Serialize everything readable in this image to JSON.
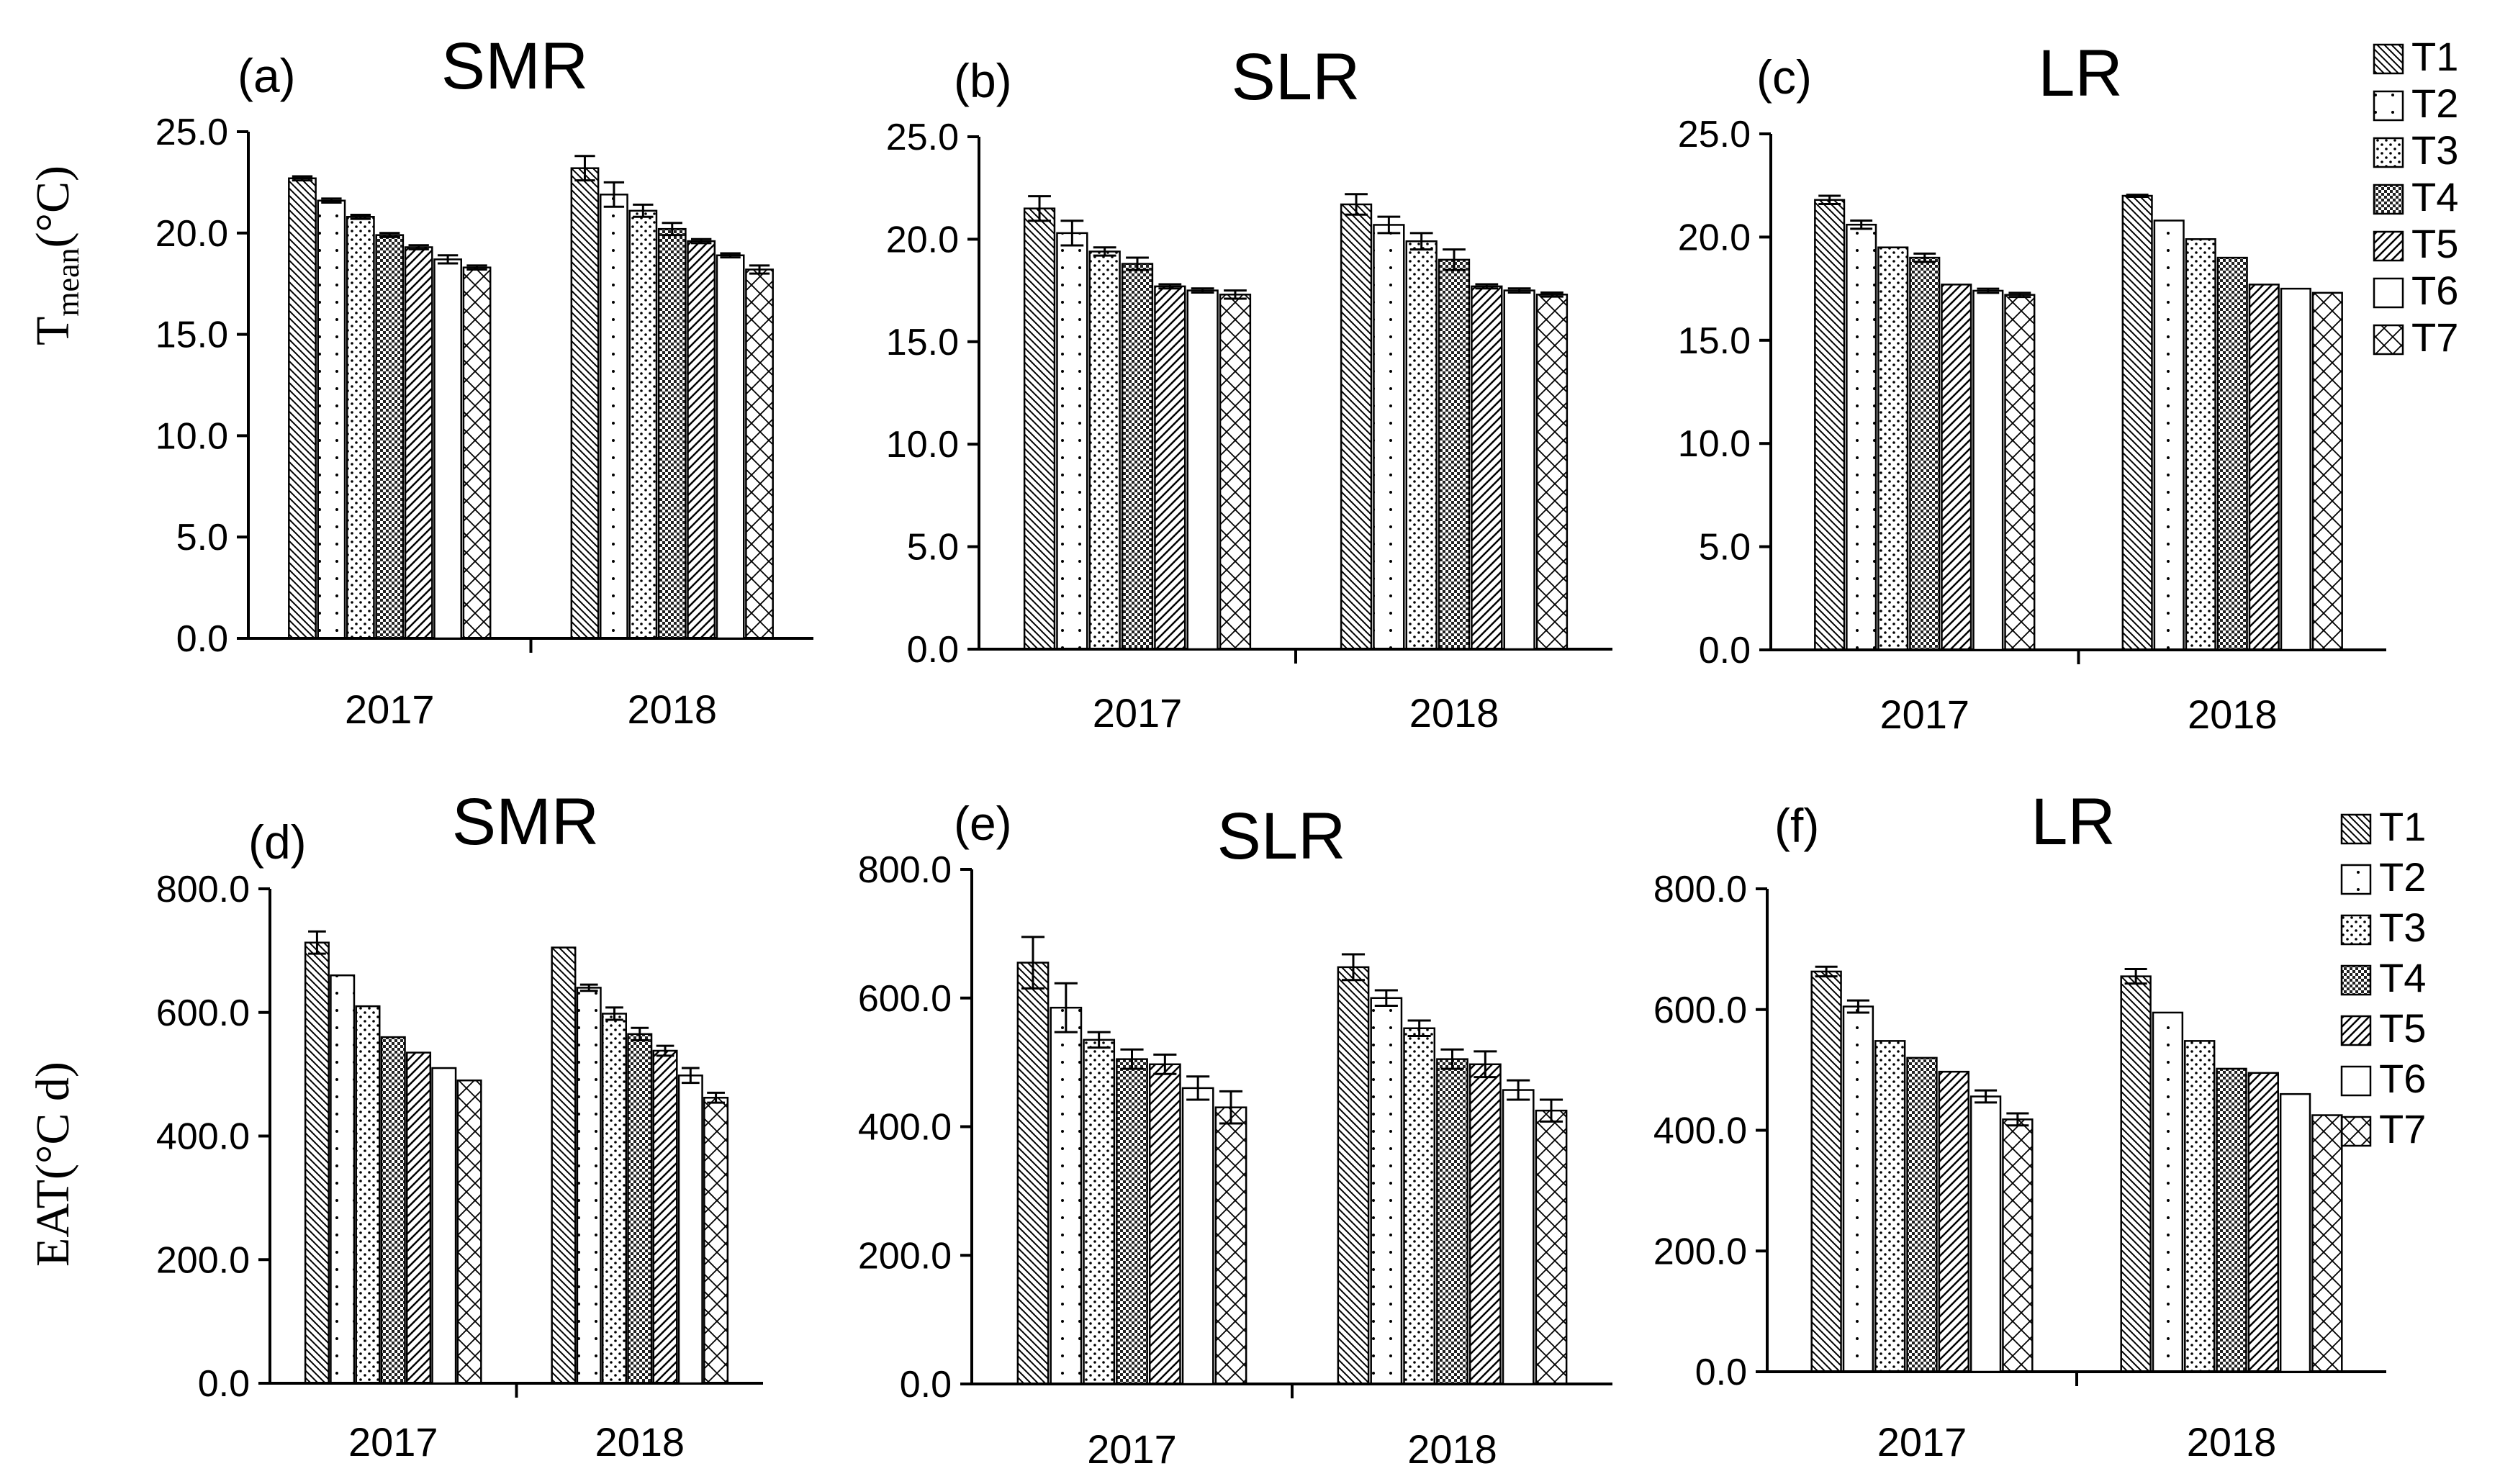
{
  "figure": {
    "y_title_top": "T",
    "y_title_top_sub": "mean",
    "y_title_top_unit": "(°C)",
    "y_title_bottom": "EAT(°C d)"
  },
  "legend": {
    "entries": [
      "T1",
      "T2",
      "T3",
      "T4",
      "T5",
      "T6",
      "T7"
    ]
  },
  "chart_data": [
    {
      "type": "bar",
      "panel": "(a)",
      "title": "SMR",
      "categories": [
        "2017",
        "2018"
      ],
      "ylim": [
        0,
        25
      ],
      "yticks": [
        "0.0",
        "5.0",
        "10.0",
        "15.0",
        "20.0",
        "25.0"
      ],
      "series": [
        {
          "name": "T1",
          "values": [
            22.7,
            23.2
          ],
          "errors": [
            0.1,
            0.6
          ]
        },
        {
          "name": "T2",
          "values": [
            21.6,
            21.9
          ],
          "errors": [
            0.1,
            0.6
          ]
        },
        {
          "name": "T3",
          "values": [
            20.8,
            21.1
          ],
          "errors": [
            0.1,
            0.3
          ]
        },
        {
          "name": "T4",
          "values": [
            19.9,
            20.2
          ],
          "errors": [
            0.1,
            0.3
          ]
        },
        {
          "name": "T5",
          "values": [
            19.3,
            19.6
          ],
          "errors": [
            0.1,
            0.1
          ]
        },
        {
          "name": "T6",
          "values": [
            18.7,
            18.9
          ],
          "errors": [
            0.2,
            0.1
          ]
        },
        {
          "name": "T7",
          "values": [
            18.3,
            18.2
          ],
          "errors": [
            0.1,
            0.2
          ]
        }
      ]
    },
    {
      "type": "bar",
      "panel": "(b)",
      "title": "SLR",
      "categories": [
        "2017",
        "2018"
      ],
      "ylim": [
        0,
        25
      ],
      "yticks": [
        "0.0",
        "5.0",
        "10.0",
        "15.0",
        "20.0",
        "25.0"
      ],
      "series": [
        {
          "name": "T1",
          "values": [
            21.5,
            21.7
          ],
          "errors": [
            0.6,
            0.5
          ]
        },
        {
          "name": "T2",
          "values": [
            20.3,
            20.7
          ],
          "errors": [
            0.6,
            0.4
          ]
        },
        {
          "name": "T3",
          "values": [
            19.4,
            19.9
          ],
          "errors": [
            0.2,
            0.4
          ]
        },
        {
          "name": "T4",
          "values": [
            18.8,
            19.0
          ],
          "errors": [
            0.3,
            0.5
          ]
        },
        {
          "name": "T5",
          "values": [
            17.7,
            17.7
          ],
          "errors": [
            0.1,
            0.1
          ]
        },
        {
          "name": "T6",
          "values": [
            17.5,
            17.5
          ],
          "errors": [
            0.1,
            0.1
          ]
        },
        {
          "name": "T7",
          "values": [
            17.3,
            17.3
          ],
          "errors": [
            0.2,
            0.1
          ]
        }
      ]
    },
    {
      "type": "bar",
      "panel": "(c)",
      "title": "LR",
      "categories": [
        "2017",
        "2018"
      ],
      "ylim": [
        0,
        25
      ],
      "yticks": [
        "0.0",
        "5.0",
        "10.0",
        "15.0",
        "20.0",
        "25.0"
      ],
      "series": [
        {
          "name": "T1",
          "values": [
            21.8,
            22.0
          ],
          "errors": [
            0.2,
            0.05
          ]
        },
        {
          "name": "T2",
          "values": [
            20.6,
            20.8
          ],
          "errors": [
            0.2,
            0
          ]
        },
        {
          "name": "T3",
          "values": [
            19.5,
            19.9
          ],
          "errors": [
            0,
            0
          ]
        },
        {
          "name": "T4",
          "values": [
            19.0,
            19.0
          ],
          "errors": [
            0.2,
            0
          ]
        },
        {
          "name": "T5",
          "values": [
            17.7,
            17.7
          ],
          "errors": [
            0,
            0
          ]
        },
        {
          "name": "T6",
          "values": [
            17.4,
            17.5
          ],
          "errors": [
            0.1,
            0
          ]
        },
        {
          "name": "T7",
          "values": [
            17.2,
            17.3
          ],
          "errors": [
            0.1,
            0
          ]
        }
      ]
    },
    {
      "type": "bar",
      "panel": "(d)",
      "title": "SMR",
      "categories": [
        "2017",
        "2018"
      ],
      "ylim": [
        0,
        800
      ],
      "yticks": [
        "0.0",
        "200.0",
        "400.0",
        "600.0",
        "800.0"
      ],
      "series": [
        {
          "name": "T1",
          "values": [
            713,
            705
          ],
          "errors": [
            18,
            0
          ]
        },
        {
          "name": "T2",
          "values": [
            660,
            640
          ],
          "errors": [
            0,
            5
          ]
        },
        {
          "name": "T3",
          "values": [
            610,
            598
          ],
          "errors": [
            0,
            10
          ]
        },
        {
          "name": "T4",
          "values": [
            560,
            565
          ],
          "errors": [
            0,
            10
          ]
        },
        {
          "name": "T5",
          "values": [
            535,
            538
          ],
          "errors": [
            0,
            8
          ]
        },
        {
          "name": "T6",
          "values": [
            510,
            498
          ],
          "errors": [
            0,
            12
          ]
        },
        {
          "name": "T7",
          "values": [
            490,
            462
          ],
          "errors": [
            0,
            8
          ]
        }
      ]
    },
    {
      "type": "bar",
      "panel": "(e)",
      "title": "SLR",
      "categories": [
        "2017",
        "2018"
      ],
      "ylim": [
        0,
        800
      ],
      "yticks": [
        "0.0",
        "200.0",
        "400.0",
        "600.0",
        "800.0"
      ],
      "series": [
        {
          "name": "T1",
          "values": [
            655,
            648
          ],
          "errors": [
            40,
            20
          ]
        },
        {
          "name": "T2",
          "values": [
            585,
            600
          ],
          "errors": [
            38,
            12
          ]
        },
        {
          "name": "T3",
          "values": [
            535,
            553
          ],
          "errors": [
            12,
            12
          ]
        },
        {
          "name": "T4",
          "values": [
            505,
            505
          ],
          "errors": [
            15,
            15
          ]
        },
        {
          "name": "T5",
          "values": [
            497,
            497
          ],
          "errors": [
            15,
            20
          ]
        },
        {
          "name": "T6",
          "values": [
            460,
            457
          ],
          "errors": [
            18,
            15
          ]
        },
        {
          "name": "T7",
          "values": [
            430,
            425
          ],
          "errors": [
            25,
            17
          ]
        }
      ]
    },
    {
      "type": "bar",
      "panel": "(f)",
      "title": "LR",
      "categories": [
        "2017",
        "2018"
      ],
      "ylim": [
        0,
        800
      ],
      "yticks": [
        "0.0",
        "200.0",
        "400.0",
        "600.0",
        "800.0"
      ],
      "series": [
        {
          "name": "T1",
          "values": [
            663,
            655
          ],
          "errors": [
            8,
            12
          ]
        },
        {
          "name": "T2",
          "values": [
            605,
            595
          ],
          "errors": [
            10,
            0
          ]
        },
        {
          "name": "T3",
          "values": [
            548,
            548
          ],
          "errors": [
            0,
            0
          ]
        },
        {
          "name": "T4",
          "values": [
            520,
            502
          ],
          "errors": [
            0,
            0
          ]
        },
        {
          "name": "T5",
          "values": [
            497,
            495
          ],
          "errors": [
            0,
            0
          ]
        },
        {
          "name": "T6",
          "values": [
            456,
            460
          ],
          "errors": [
            10,
            0
          ]
        },
        {
          "name": "T7",
          "values": [
            418,
            425
          ],
          "errors": [
            10,
            0
          ]
        }
      ]
    }
  ]
}
